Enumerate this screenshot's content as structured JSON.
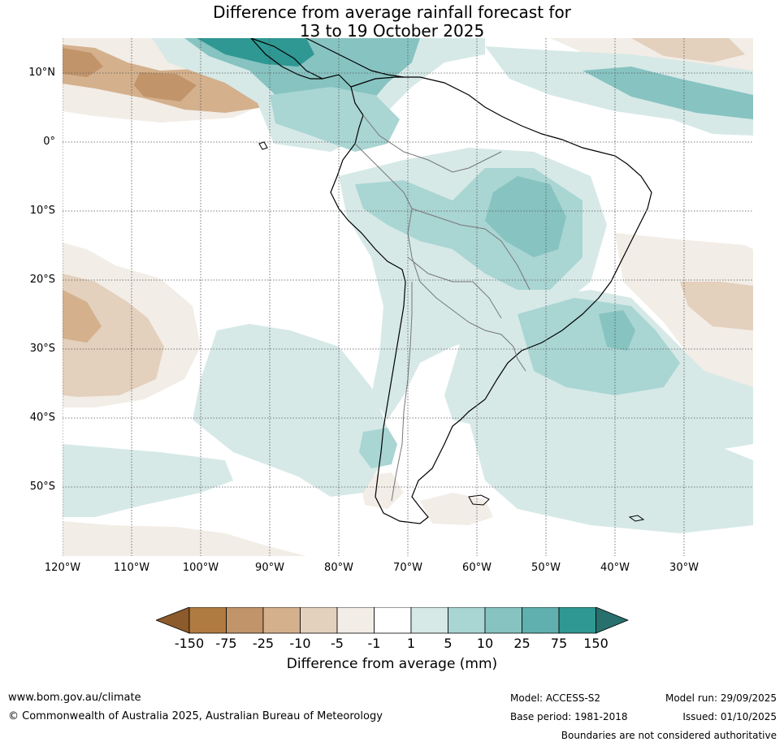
{
  "title": {
    "line1": "Difference from average rainfall forecast for",
    "line2": "13 to 19 October 2025"
  },
  "map": {
    "lat_labels": [
      "10°N",
      "0°",
      "10°S",
      "20°S",
      "30°S",
      "40°S",
      "50°S"
    ],
    "lon_labels": [
      "120°W",
      "110°W",
      "100°W",
      "90°W",
      "80°W",
      "70°W",
      "60°W",
      "50°W",
      "40°W",
      "30°W"
    ],
    "colors": {
      "c1": "#d6e9e7",
      "c2": "#a9d5d3",
      "c3": "#86c3c1",
      "c4": "#5fb0ae",
      "c5": "#2f9893",
      "d1": "#f2ede6",
      "d2": "#e3d0bd",
      "d3": "#d4b08d",
      "d4": "#c1946a"
    }
  },
  "legend": {
    "title": "Difference from average (mm)",
    "ticks": [
      "-150",
      "-75",
      "-25",
      "-10",
      "-5",
      "-1",
      "1",
      "5",
      "10",
      "25",
      "75",
      "150"
    ],
    "colors": [
      "#8d5a2b",
      "#b07b41",
      "#c1946a",
      "#d4b08d",
      "#e3d0bd",
      "#f2ede6",
      "#ffffff",
      "#d6e9e7",
      "#a9d5d3",
      "#86c3c1",
      "#5fb0ae",
      "#2f9893",
      "#27706d"
    ]
  },
  "footer": {
    "website": "www.bom.gov.au/climate",
    "copyright": "© Commonwealth of Australia 2025, Australian Bureau of Meteorology",
    "model": "Model: ACCESS-S2",
    "base_period": "Base period: 1981-2018",
    "model_run": "Model run: 29/09/2025",
    "issued": "Issued: 01/10/2025",
    "boundaries": "Boundaries are not considered authoritative"
  }
}
